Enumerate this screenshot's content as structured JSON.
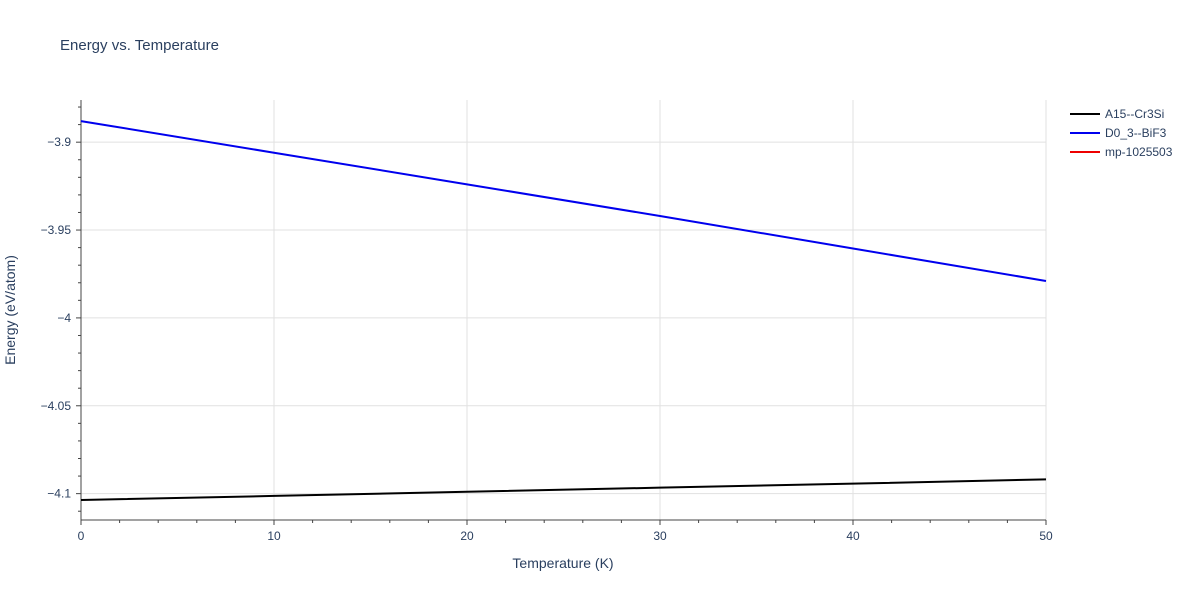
{
  "chart_data": {
    "type": "line",
    "title": "Energy vs. Temperature",
    "xlabel": "Temperature (K)",
    "ylabel": "Energy (eV/atom)",
    "xlim": [
      0,
      50
    ],
    "ylim": [
      -4.115,
      -3.876
    ],
    "x_ticks": [
      0,
      10,
      20,
      30,
      40,
      50
    ],
    "x_tick_labels": [
      "0",
      "10",
      "20",
      "30",
      "40",
      "50"
    ],
    "y_ticks": [
      -3.9,
      -3.95,
      -4.0,
      -4.05,
      -4.1
    ],
    "y_tick_labels": [
      "−3.9",
      "−3.95",
      "−4",
      "−4.05",
      "−4.1"
    ],
    "grid": true,
    "legend_position": "top-right",
    "series": [
      {
        "name": "A15--Cr3Si",
        "color": "#000000",
        "x": [
          0,
          10,
          20,
          30,
          40,
          50
        ],
        "y": [
          -4.1036,
          -4.1013,
          -4.0989,
          -4.0966,
          -4.0943,
          -4.0919
        ]
      },
      {
        "name": "D0_3--BiF3",
        "color": "#0000ee",
        "x": [
          0,
          10,
          20,
          30,
          40,
          50
        ],
        "y": [
          -3.888,
          -3.906,
          -3.924,
          -3.942,
          -3.9605,
          -3.979
        ]
      },
      {
        "name": "mp-1025503",
        "color": "#ee0000",
        "x": [],
        "y": []
      }
    ]
  }
}
